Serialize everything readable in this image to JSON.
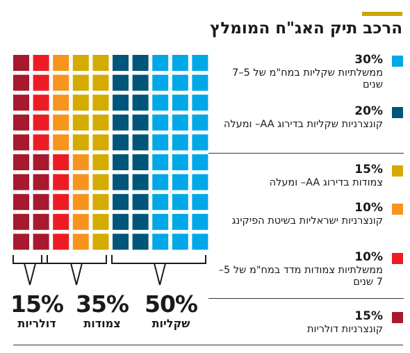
{
  "title": "הרכב תיק האג\"ח המומלץ",
  "colors": {
    "accent": "#c9a800",
    "text": "#1a1a1a",
    "rule": "#333333"
  },
  "chart_data": {
    "type": "waffle",
    "title": "הרכב תיק האג\"ח המומלץ",
    "grid": {
      "columns": 10,
      "rows": 10,
      "unit_percent": 1
    },
    "series": [
      {
        "value": 30,
        "label": "30%",
        "description": "ממשלתיות שקליות במח\"מ של 5–7 שנים",
        "color": "#00a8e8",
        "columns": [
          8,
          9,
          10
        ]
      },
      {
        "value": 20,
        "label": "20%",
        "description": "קונצרניות שקליות בדירוג AA– ומעלה",
        "color": "#00557a",
        "columns": [
          6,
          7
        ]
      },
      {
        "value": 15,
        "label": "15%",
        "description": "צמודות בדירוג AA– ומעלה",
        "color": "#d4ab00",
        "columns": [
          4,
          5
        ],
        "rows_bottom": 5
      },
      {
        "value": 10,
        "label": "10%",
        "description": "קונצרניות ישראליות בשיטת הפיקינג",
        "color": "#f7941d",
        "columns": [
          3,
          4,
          5
        ],
        "rows_top_in_col_4_5": 5
      },
      {
        "value": 10,
        "label": "10%",
        "description": "ממשלתיות צמודות מדד במח\"מ של 5–7 שנים",
        "color": "#ed1c24",
        "columns": [
          2,
          3
        ]
      },
      {
        "value": 15,
        "label": "15%",
        "description": "קונצרניות דולריות",
        "color": "#a6192e",
        "columns": [
          1,
          2
        ]
      }
    ],
    "groups": [
      {
        "name": "דולריות",
        "value": "15%"
      },
      {
        "name": "צמודות",
        "value": "35%"
      },
      {
        "name": "שקליות",
        "value": "50%"
      }
    ],
    "cells": [
      [
        "#a6192e",
        "#ed1c24",
        "#f7941d",
        "#d4ab00",
        "#d4ab00",
        "#00557a",
        "#00557a",
        "#00a8e8",
        "#00a8e8",
        "#00a8e8"
      ],
      [
        "#a6192e",
        "#ed1c24",
        "#f7941d",
        "#d4ab00",
        "#d4ab00",
        "#00557a",
        "#00557a",
        "#00a8e8",
        "#00a8e8",
        "#00a8e8"
      ],
      [
        "#a6192e",
        "#ed1c24",
        "#f7941d",
        "#d4ab00",
        "#d4ab00",
        "#00557a",
        "#00557a",
        "#00a8e8",
        "#00a8e8",
        "#00a8e8"
      ],
      [
        "#a6192e",
        "#ed1c24",
        "#f7941d",
        "#d4ab00",
        "#d4ab00",
        "#00557a",
        "#00557a",
        "#00a8e8",
        "#00a8e8",
        "#00a8e8"
      ],
      [
        "#a6192e",
        "#ed1c24",
        "#f7941d",
        "#d4ab00",
        "#d4ab00",
        "#00557a",
        "#00557a",
        "#00a8e8",
        "#00a8e8",
        "#00a8e8"
      ],
      [
        "#a6192e",
        "#a6192e",
        "#ed1c24",
        "#f7941d",
        "#d4ab00",
        "#00557a",
        "#00557a",
        "#00a8e8",
        "#00a8e8",
        "#00a8e8"
      ],
      [
        "#a6192e",
        "#a6192e",
        "#ed1c24",
        "#f7941d",
        "#d4ab00",
        "#00557a",
        "#00557a",
        "#00a8e8",
        "#00a8e8",
        "#00a8e8"
      ],
      [
        "#a6192e",
        "#a6192e",
        "#ed1c24",
        "#f7941d",
        "#d4ab00",
        "#00557a",
        "#00557a",
        "#00a8e8",
        "#00a8e8",
        "#00a8e8"
      ],
      [
        "#a6192e",
        "#a6192e",
        "#ed1c24",
        "#f7941d",
        "#d4ab00",
        "#00557a",
        "#00557a",
        "#00a8e8",
        "#00a8e8",
        "#00a8e8"
      ],
      [
        "#a6192e",
        "#a6192e",
        "#ed1c24",
        "#f7941d",
        "#d4ab00",
        "#00557a",
        "#00557a",
        "#00a8e8",
        "#00a8e8",
        "#00a8e8"
      ]
    ]
  }
}
